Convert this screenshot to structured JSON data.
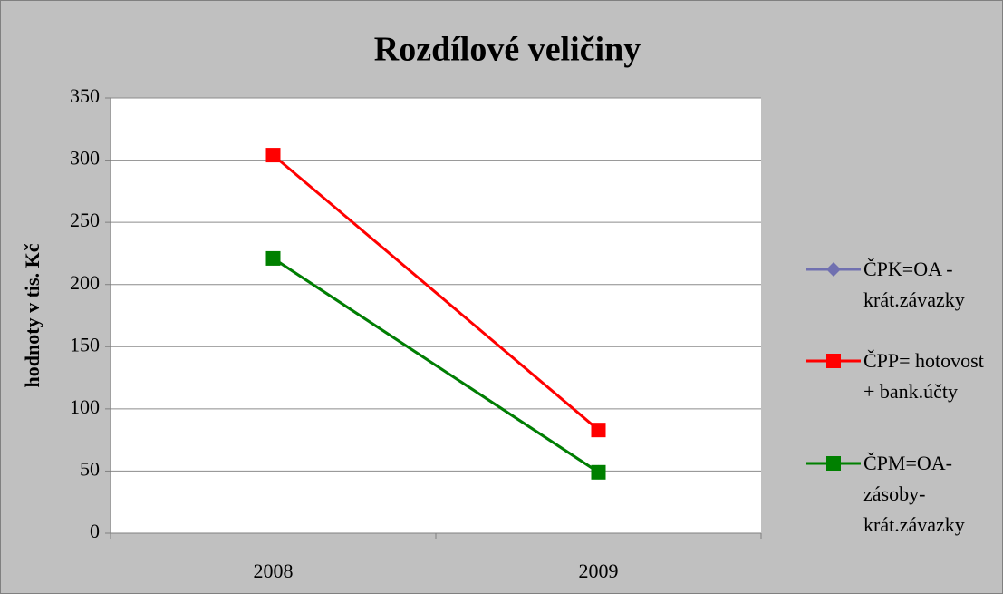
{
  "chart_data": {
    "type": "line",
    "title": "Rozdílové veličiny",
    "y_label": "hodnoty v tis. Kč",
    "categories": [
      "2008",
      "2009"
    ],
    "series": [
      {
        "name": "ČPK=OA - krát.závazky",
        "color": "#7070b0",
        "marker": "diamond",
        "values": [
          221,
          49
        ]
      },
      {
        "name": "ČPP= hotovost + bank.účty",
        "color": "#ff0000",
        "marker": "square",
        "values": [
          304,
          83
        ]
      },
      {
        "name": "ČPM=OA-zásoby-krát.závazky",
        "color": "#008000",
        "marker": "square",
        "values": [
          221,
          49
        ]
      }
    ],
    "ylim": [
      0,
      350
    ],
    "yticks": [
      0,
      50,
      100,
      150,
      200,
      250,
      300,
      350
    ],
    "grid": true,
    "legend": "right"
  }
}
